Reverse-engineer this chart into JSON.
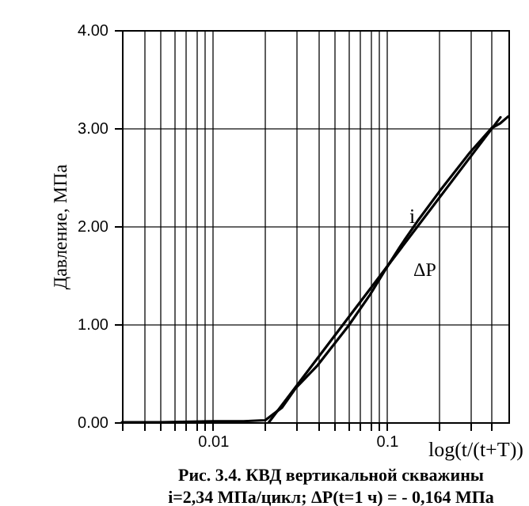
{
  "chart_data": {
    "type": "line",
    "xlabel": "log(t/(t+T))",
    "ylabel": "Давление, МПа",
    "log": "x",
    "grid": true,
    "line_style": "solid",
    "marker": "none",
    "xlim": [
      0.003,
      0.5
    ],
    "ylim": [
      0,
      4
    ],
    "xticks": [
      {
        "value": 0.003,
        "label": null
      },
      {
        "value": 0.004,
        "label": null
      },
      {
        "value": 0.005,
        "label": null
      },
      {
        "value": 0.006,
        "label": null
      },
      {
        "value": 0.007,
        "label": null
      },
      {
        "value": 0.008,
        "label": null
      },
      {
        "value": 0.009,
        "label": null
      },
      0.01,
      {
        "value": 0.02,
        "label": null
      },
      {
        "value": 0.03,
        "label": null
      },
      {
        "value": 0.04,
        "label": null
      },
      {
        "value": 0.05,
        "label": null
      },
      {
        "value": 0.06,
        "label": null
      },
      {
        "value": 0.07,
        "label": null
      },
      {
        "value": 0.08,
        "label": null
      },
      {
        "value": 0.09,
        "label": null
      },
      0.1,
      {
        "value": 0.2,
        "label": null
      },
      {
        "value": 0.3,
        "label": null
      },
      {
        "value": 0.4,
        "label": null
      }
    ],
    "yticks": [
      {
        "value": 0,
        "label": "0.00"
      },
      {
        "value": 1,
        "label": "1.00"
      },
      {
        "value": 2,
        "label": "2.00"
      },
      {
        "value": 3,
        "label": "3.00"
      },
      {
        "value": 4,
        "label": "4.00"
      }
    ],
    "x": [
      0.003,
      0.005,
      0.01,
      0.015,
      0.02,
      0.025,
      0.03,
      0.04,
      0.05,
      0.06,
      0.08,
      0.1,
      0.12,
      0.15,
      0.2,
      0.3,
      0.4,
      0.45,
      0.5
    ],
    "series": [
      {
        "color": "#000000",
        "values": [
          0.0,
          0.0,
          0.01,
          0.01,
          0.02,
          0.15,
          0.35,
          0.58,
          0.8,
          0.98,
          1.3,
          1.58,
          1.8,
          2.05,
          2.35,
          2.75,
          3.0,
          3.05,
          3.12
        ]
      },
      {
        "type": "line",
        "color": "#000000",
        "x": [
          0.021,
          0.45
        ],
        "values": [
          0,
          3.11
        ]
      }
    ],
    "annotations": [
      {
        "text": "i",
        "x": 0.135,
        "y": 2.1
      },
      "ΔP",
      "Рис. 3.4. КВД вертикальной скважины",
      "i=2,34 МПа/цикл; ΔP(t=1 ч) = - 0,164 МПа"
    ]
  }
}
